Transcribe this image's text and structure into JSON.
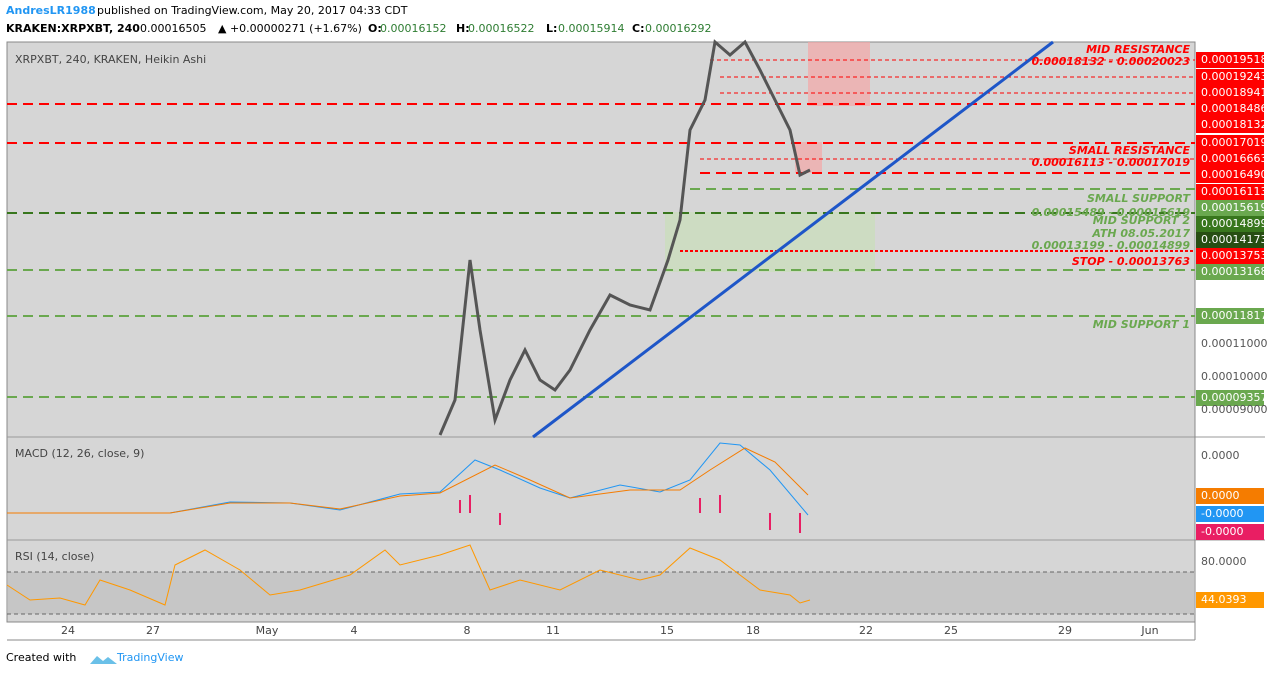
{
  "header": {
    "author": "AndresLR1988",
    "published": "published on TradingView.com, May 20, 2017 04:33 CDT",
    "symbol": "KRAKEN:XRPXBT, 240",
    "last": "0.00016505",
    "change": "▲ +0.00000271 (+1.67%)",
    "ohlc": [
      "O:",
      "0.00016152",
      "H:",
      "0.00016522",
      "L:",
      "0.00015914",
      "C:",
      "0.00016292"
    ]
  },
  "main_pane": {
    "title": "XRPXBT, 240, KRAKEN, Heikin Ashi",
    "annotations": [
      {
        "text": "MID RESISTANCE",
        "color": "#ff0000"
      },
      {
        "text": "0.00018132 - 0.00020023",
        "color": "#ff0000"
      },
      {
        "text": "SMALL RESISTANCE",
        "color": "#ff0000"
      },
      {
        "text": "0.00016113 - 0.00017019",
        "color": "#ff0000"
      },
      {
        "text": "SMALL SUPPORT",
        "color": "#6aa84f"
      },
      {
        "text": "0.00015489 - 0.00015619",
        "color": "#6aa84f"
      },
      {
        "text": "MID SUPPORT 2",
        "color": "#6aa84f"
      },
      {
        "text": "ATH 08.05.2017",
        "color": "#6aa84f"
      },
      {
        "text": "0.00013199 - 0.00014899",
        "color": "#6aa84f"
      },
      {
        "text": "STOP - 0.00013763",
        "color": "#ff0000"
      },
      {
        "text": "MID SUPPORT 1",
        "color": "#6aa84f"
      }
    ]
  },
  "price_axis": [
    {
      "text": "0.00019518",
      "color": "#ff0000"
    },
    {
      "text": "0.00019243",
      "color": "#ff0000"
    },
    {
      "text": "0.00018941",
      "color": "#ff0000"
    },
    {
      "text": "0.00018486",
      "color": "#ff0000"
    },
    {
      "text": "0.00018132",
      "color": "#ff0000"
    },
    {
      "text": "0.00017019",
      "color": "#ff0000"
    },
    {
      "text": "0.00016663",
      "color": "#ff0000"
    },
    {
      "text": "0.00016490",
      "color": "#ff0000"
    },
    {
      "text": "0.00016113",
      "color": "#ff0000"
    },
    {
      "text": "0.00015619",
      "color": "#6aa84f"
    },
    {
      "text": "0.00014899",
      "color": "#38761d"
    },
    {
      "text": "0.00014173",
      "color": "#274e13"
    },
    {
      "text": "0.00013753",
      "color": "#ff0000"
    },
    {
      "text": "0.00013168",
      "color": "#6aa84f"
    },
    {
      "text": "0.00011817",
      "color": "#6aa84f"
    },
    {
      "text": "0.00011000",
      "color": null
    },
    {
      "text": "0.00010000",
      "color": null
    },
    {
      "text": "0.00009357",
      "color": "#6aa84f"
    },
    {
      "text": "0.00009000",
      "color": null
    }
  ],
  "macd_pane": {
    "title": "MACD (12, 26, close, 9)",
    "labels": [
      {
        "text": "0.0000",
        "color": null
      },
      {
        "text": "0.0000",
        "color": "#f57c00"
      },
      {
        "text": "-0.0000",
        "color": "#2196f3"
      },
      {
        "text": "-0.0000",
        "color": "#e91e63"
      }
    ]
  },
  "rsi_pane": {
    "title": "RSI (14, close)",
    "labels": [
      {
        "text": "80.0000",
        "color": null
      },
      {
        "text": "44.0393",
        "color": "#ff9800"
      }
    ]
  },
  "time_axis": [
    "24",
    "27",
    "May",
    "4",
    "8",
    "11",
    "15",
    "18",
    "22",
    "25",
    "29",
    "Jun"
  ],
  "footer": {
    "created": "Created with",
    "brand": "TradingView"
  }
}
